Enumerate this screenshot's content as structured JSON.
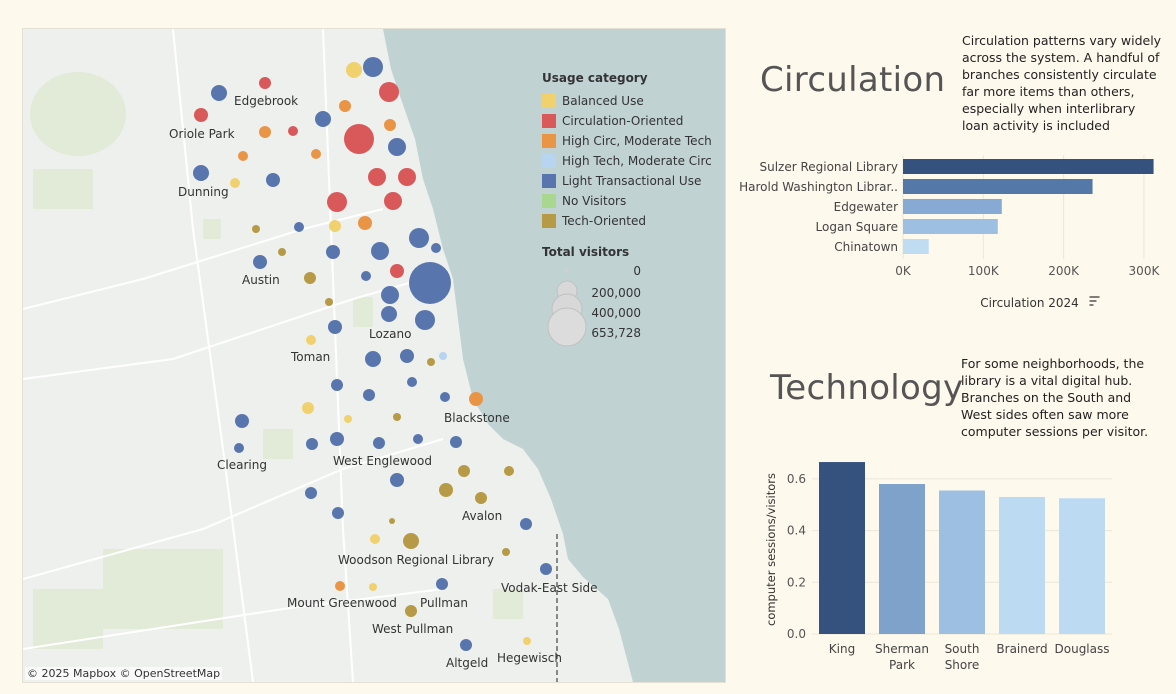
{
  "map": {
    "attribution": "© 2025 Mapbox  © OpenStreetMap",
    "labels": [
      "Edgebrook",
      "Oriole Park",
      "Dunning",
      "Austin",
      "Toman",
      "Lozano",
      "Blackstone",
      "Clearing",
      "West Englewood",
      "Avalon",
      "Woodson Regional Library",
      "Mount Greenwood",
      "Pullman",
      "Vodak-East Side",
      "West Pullman",
      "Altgeld",
      "Hegewisch"
    ],
    "legend": {
      "title": "Usage category",
      "categories": [
        {
          "label": "Balanced Use",
          "color": "#f0d16e"
        },
        {
          "label": "Circulation-Oriented",
          "color": "#d9595a"
        },
        {
          "label": "High Circ, Moderate Tech",
          "color": "#ea9446"
        },
        {
          "label": "High Tech, Moderate Circ",
          "color": "#b7d4f0"
        },
        {
          "label": "Light Transactional Use",
          "color": "#5876ad"
        },
        {
          "label": "No Visitors",
          "color": "#a9d78f"
        },
        {
          "label": "Tech-Oriented",
          "color": "#b79a45"
        }
      ],
      "size_title": "Total visitors",
      "size_values": [
        "0",
        "200,000",
        "400,000",
        "653,728"
      ]
    }
  },
  "circulation": {
    "title": "Circulation",
    "blurb": "Circulation patterns vary widely across the system. A handful of branches consistently circulate far more items than others, especially when interlibrary loan activity is included"
  },
  "technology": {
    "title": "Technology",
    "blurb": "For some neighborhoods, the library is a vital digital hub. Branches on the South and West sides often saw more computer sessions per visitor."
  },
  "chart_data": [
    {
      "type": "bar",
      "orientation": "horizontal",
      "categories": [
        "Sulzer Regional Library",
        "Harold Washington Librar..",
        "Edgewater",
        "Logan Square",
        "Chinatown"
      ],
      "values": [
        312000,
        236000,
        123000,
        118000,
        32000
      ],
      "colors": [
        "#35527e",
        "#5479a8",
        "#86aad4",
        "#9cbfe2",
        "#bfdcf3"
      ],
      "xlabel": "Circulation 2024",
      "xlim": [
        0,
        320000
      ],
      "ticks": [
        0,
        100000,
        200000,
        300000
      ],
      "tick_labels": [
        "0K",
        "100K",
        "200K",
        "300K"
      ]
    },
    {
      "type": "bar",
      "orientation": "vertical",
      "categories": [
        "King",
        "Sherman Park",
        "South Shore",
        "Brainerd",
        "Douglass"
      ],
      "category_lines": [
        [
          "King"
        ],
        [
          "Sherman",
          "Park"
        ],
        [
          "South",
          "Shore"
        ],
        [
          "Brainerd"
        ],
        [
          "Douglass"
        ]
      ],
      "values": [
        0.665,
        0.58,
        0.555,
        0.53,
        0.525
      ],
      "colors": [
        "#35527e",
        "#7fa2cb",
        "#9cbfe2",
        "#bcdaf1",
        "#bcdaf1"
      ],
      "ylabel": "computer sessions/visitors",
      "ylim": [
        0,
        0.7
      ],
      "ticks": [
        0.0,
        0.2,
        0.4,
        0.6
      ],
      "tick_labels": [
        "0.0",
        "0.2",
        "0.4",
        "0.6"
      ]
    }
  ]
}
